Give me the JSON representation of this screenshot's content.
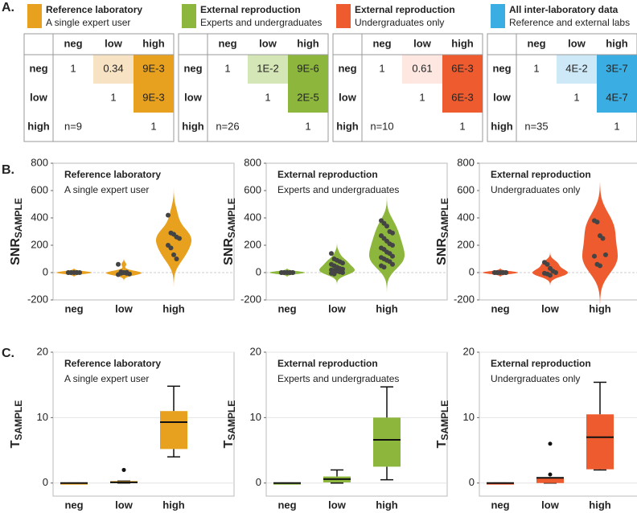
{
  "panel_labels": [
    "A.",
    "B.",
    "C."
  ],
  "tables": [
    {
      "title": "Reference laboratory",
      "subtitle": "A single expert user",
      "color": "#e8a11f",
      "columns": [
        "neg",
        "low",
        "high"
      ],
      "rows": [
        {
          "label": "neg",
          "cells": [
            "1",
            "0.34",
            "9E-3"
          ],
          "cell_colors": [
            null,
            "#f7e3c4",
            "#e8a11f"
          ]
        },
        {
          "label": "low",
          "cells": [
            null,
            "1",
            "9E-3"
          ],
          "cell_colors": [
            null,
            null,
            "#e8a11f"
          ]
        },
        {
          "label": "high",
          "cells": [
            "n=9",
            null,
            "1"
          ],
          "cell_colors": [
            null,
            null,
            null
          ]
        }
      ]
    },
    {
      "title": "External reproduction",
      "subtitle": "Experts and undergraduates",
      "color": "#8cb63c",
      "columns": [
        "neg",
        "low",
        "high"
      ],
      "rows": [
        {
          "label": "neg",
          "cells": [
            "1",
            "1E-2",
            "9E-6"
          ],
          "cell_colors": [
            null,
            "#d5e6b6",
            "#8cb63c"
          ]
        },
        {
          "label": "low",
          "cells": [
            null,
            "1",
            "2E-5"
          ],
          "cell_colors": [
            null,
            null,
            "#8cb63c"
          ]
        },
        {
          "label": "high",
          "cells": [
            "n=26",
            null,
            "1"
          ],
          "cell_colors": [
            null,
            null,
            null
          ]
        }
      ]
    },
    {
      "title": "External reproduction",
      "subtitle": "Undergraduates only",
      "color": "#ee5b2e",
      "columns": [
        "neg",
        "low",
        "high"
      ],
      "rows": [
        {
          "label": "neg",
          "cells": [
            "1",
            "0.61",
            "6E-3"
          ],
          "cell_colors": [
            null,
            "#fde7e0",
            "#ee5b2e"
          ]
        },
        {
          "label": "low",
          "cells": [
            null,
            "1",
            "6E-3"
          ],
          "cell_colors": [
            null,
            null,
            "#ee5b2e"
          ]
        },
        {
          "label": "high",
          "cells": [
            "n=10",
            null,
            "1"
          ],
          "cell_colors": [
            null,
            null,
            null
          ]
        }
      ]
    },
    {
      "title": "All inter-laboratory data",
      "subtitle": "Reference and external labs",
      "color": "#3aaee2",
      "columns": [
        "neg",
        "low",
        "high"
      ],
      "rows": [
        {
          "label": "neg",
          "cells": [
            "1",
            "4E-2",
            "3E-7"
          ],
          "cell_colors": [
            null,
            "#cde9f7",
            "#3aaee2"
          ]
        },
        {
          "label": "low",
          "cells": [
            null,
            "1",
            "4E-7"
          ],
          "cell_colors": [
            null,
            null,
            "#3aaee2"
          ]
        },
        {
          "label": "high",
          "cells": [
            "n=35",
            null,
            "1"
          ],
          "cell_colors": [
            null,
            null,
            null
          ]
        }
      ]
    }
  ],
  "chart_data": [
    {
      "type": "violin",
      "title": "Reference laboratory",
      "subtitle": "A single expert user",
      "ylabel": "SNR",
      "ylabel_sub": "SAMPLE",
      "color": "#e8a11f",
      "categories": [
        "neg",
        "low",
        "high"
      ],
      "values": [
        [
          0,
          0,
          0,
          0,
          0,
          0,
          0,
          0,
          0
        ],
        [
          60,
          5,
          0,
          -5,
          -10,
          -15,
          -5,
          0,
          2
        ],
        [
          420,
          290,
          280,
          260,
          250,
          200,
          180,
          130,
          100
        ]
      ],
      "ylim": [
        -200,
        800
      ],
      "yticks": [
        -200,
        0,
        200,
        400,
        600,
        800
      ],
      "zero_line": true
    },
    {
      "type": "violin",
      "title": "External reproduction",
      "subtitle": "Experts and undergraduates",
      "ylabel": "SNR",
      "ylabel_sub": "SAMPLE",
      "color": "#8cb63c",
      "categories": [
        "neg",
        "low",
        "high"
      ],
      "values": [
        [
          0,
          0,
          0,
          0,
          0,
          0,
          0,
          0,
          0,
          0
        ],
        [
          140,
          100,
          90,
          80,
          70,
          60,
          50,
          40,
          30,
          25,
          20,
          15,
          10,
          5,
          0,
          -5,
          -10
        ],
        [
          380,
          360,
          340,
          300,
          290,
          270,
          250,
          230,
          210,
          200,
          180,
          170,
          150,
          140,
          120,
          110,
          100,
          90,
          80,
          60,
          50,
          40
        ]
      ],
      "ylim": [
        -200,
        800
      ],
      "yticks": [
        -200,
        0,
        200,
        400,
        600,
        800
      ],
      "zero_line": true
    },
    {
      "type": "violin",
      "title": "External reproduction",
      "subtitle": "Undergraduates only",
      "ylabel": "SNR",
      "ylabel_sub": "SAMPLE",
      "color": "#ee5b2e",
      "categories": [
        "neg",
        "low",
        "high"
      ],
      "values": [
        [
          0,
          0,
          0,
          0,
          0,
          0,
          0,
          0,
          0,
          0
        ],
        [
          75,
          60,
          30,
          10,
          0,
          -5,
          -10,
          -20
        ],
        [
          380,
          370,
          270,
          250,
          130,
          120,
          60,
          50
        ]
      ],
      "ylim": [
        -200,
        800
      ],
      "yticks": [
        -200,
        0,
        200,
        400,
        600,
        800
      ],
      "zero_line": true
    },
    {
      "type": "box",
      "title": "Reference laboratory",
      "subtitle": "A single expert user",
      "ylabel": "T",
      "ylabel_sub": "SAMPLE",
      "color": "#e8a11f",
      "categories": [
        "neg",
        "low",
        "high"
      ],
      "boxes": [
        {
          "min": 0,
          "q1": 0,
          "median": 0,
          "q3": 0,
          "max": 0,
          "outliers": []
        },
        {
          "min": 0,
          "q1": 0,
          "median": 0.1,
          "q3": 0.3,
          "max": 0.3,
          "outliers": [
            2
          ]
        },
        {
          "min": 4,
          "q1": 5.2,
          "median": 9.3,
          "q3": 11,
          "max": 14.8,
          "outliers": []
        }
      ],
      "ylim": [
        -2,
        20
      ],
      "yticks": [
        0,
        10,
        20
      ],
      "grid": true
    },
    {
      "type": "box",
      "title": "External reproduction",
      "subtitle": "Experts and undergraduates",
      "ylabel": "T",
      "ylabel_sub": "SAMPLE",
      "color": "#8cb63c",
      "categories": [
        "neg",
        "low",
        "high"
      ],
      "boxes": [
        {
          "min": 0,
          "q1": 0,
          "median": 0,
          "q3": 0,
          "max": 0,
          "outliers": []
        },
        {
          "min": 0,
          "q1": 0.1,
          "median": 0.6,
          "q3": 1,
          "max": 2,
          "outliers": []
        },
        {
          "min": 0.5,
          "q1": 2.5,
          "median": 6.6,
          "q3": 10,
          "max": 14.7,
          "outliers": []
        }
      ],
      "ylim": [
        -2,
        20
      ],
      "yticks": [
        0,
        10,
        20
      ],
      "grid": true
    },
    {
      "type": "box",
      "title": "External reproduction",
      "subtitle": "Undergraduates only",
      "ylabel": "T",
      "ylabel_sub": "SAMPLE",
      "color": "#ee5b2e",
      "categories": [
        "neg",
        "low",
        "high"
      ],
      "boxes": [
        {
          "min": 0,
          "q1": 0,
          "median": 0,
          "q3": 0,
          "max": 0,
          "outliers": []
        },
        {
          "min": 0,
          "q1": 0,
          "median": 0.8,
          "q3": 0.8,
          "max": 0.8,
          "outliers": [
            6,
            1.3
          ]
        },
        {
          "min": 2,
          "q1": 2.1,
          "median": 7,
          "q3": 10.5,
          "max": 15.4,
          "outliers": []
        }
      ],
      "ylim": [
        -2,
        20
      ],
      "yticks": [
        0,
        10,
        20
      ],
      "grid": true
    }
  ]
}
